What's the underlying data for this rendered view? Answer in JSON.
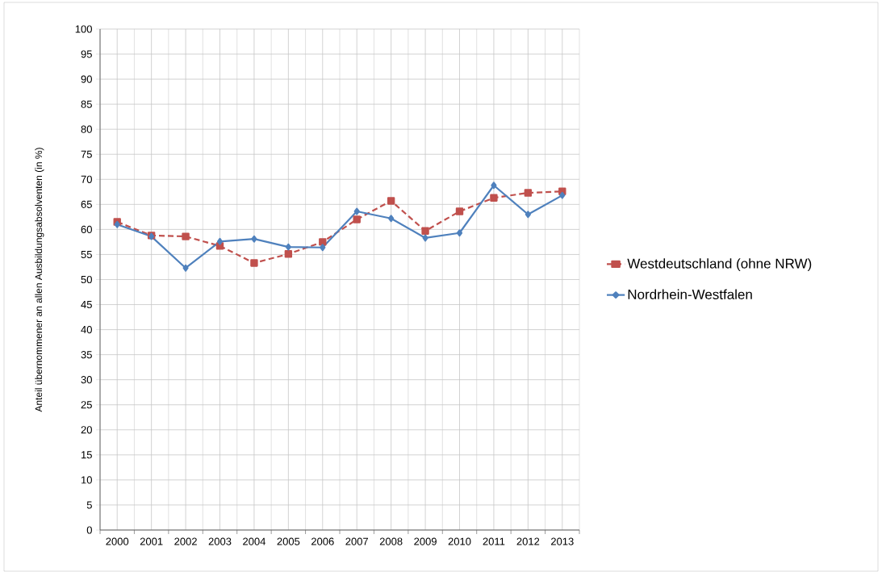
{
  "chart_data": {
    "type": "line",
    "ylabel": "Anteil übernommener an allen Ausbildungsabsolventen (in %)",
    "categories": [
      "2000",
      "2001",
      "2002",
      "2003",
      "2004",
      "2005",
      "2006",
      "2007",
      "2008",
      "2009",
      "2010",
      "2011",
      "2012",
      "2013"
    ],
    "ylim": [
      0,
      100
    ],
    "yticks": [
      0,
      5,
      10,
      15,
      20,
      25,
      30,
      35,
      40,
      45,
      50,
      55,
      60,
      65,
      70,
      75,
      80,
      85,
      90,
      95,
      100
    ],
    "grid": true,
    "legend": "right",
    "series": [
      {
        "name": "Westdeutschland (ohne NRW)",
        "color": "#c0504d",
        "line_style": "dashed",
        "marker": "square",
        "values": [
          61.5,
          58.8,
          58.6,
          56.7,
          53.3,
          55.1,
          57.5,
          62.0,
          65.7,
          59.7,
          63.6,
          66.3,
          67.3,
          67.6
        ]
      },
      {
        "name": "Nordrhein-Westfalen",
        "color": "#4f81bd",
        "line_style": "solid",
        "marker": "diamond",
        "values": [
          61.0,
          58.6,
          52.3,
          57.6,
          58.1,
          56.5,
          56.4,
          63.6,
          62.2,
          58.3,
          59.3,
          68.8,
          63.0,
          66.8
        ]
      }
    ]
  }
}
